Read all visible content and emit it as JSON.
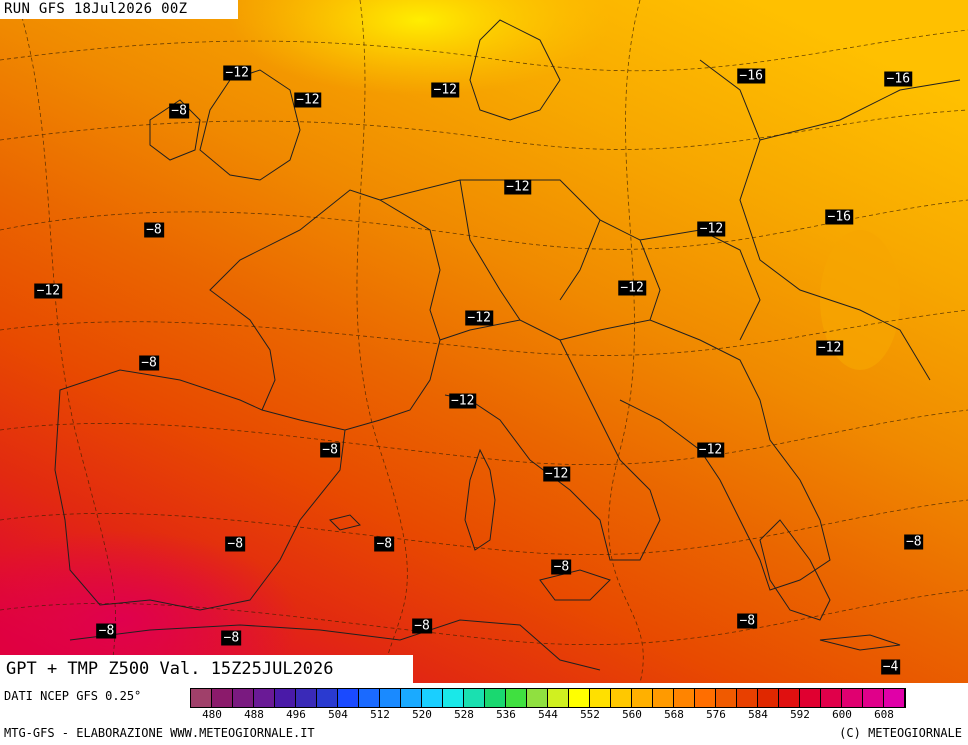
{
  "header": {
    "run_label": "RUN GFS 18Jul2026 00Z"
  },
  "map": {
    "valid_label": "GPT + TMP Z500 Val. 15Z25JUL2026",
    "temperature_labels": [
      {
        "text": "-12",
        "lon": 0.245,
        "lat": 0.107
      },
      {
        "text": "-8",
        "lon": 0.185,
        "lat": 0.163
      },
      {
        "text": "-12",
        "lon": 0.318,
        "lat": 0.146
      },
      {
        "text": "-12",
        "lon": 0.46,
        "lat": 0.132
      },
      {
        "text": "-16",
        "lon": 0.776,
        "lat": 0.112
      },
      {
        "text": "-16",
        "lon": 0.928,
        "lat": 0.116
      },
      {
        "text": "-12",
        "lon": 0.535,
        "lat": 0.274
      },
      {
        "text": "-8",
        "lon": 0.159,
        "lat": 0.337
      },
      {
        "text": "-16",
        "lon": 0.867,
        "lat": 0.317
      },
      {
        "text": "-12",
        "lon": 0.735,
        "lat": 0.336
      },
      {
        "text": "-12",
        "lon": 0.05,
        "lat": 0.426
      },
      {
        "text": "-12",
        "lon": 0.653,
        "lat": 0.421
      },
      {
        "text": "-12",
        "lon": 0.495,
        "lat": 0.465
      },
      {
        "text": "-12",
        "lon": 0.857,
        "lat": 0.509
      },
      {
        "text": "-8",
        "lon": 0.154,
        "lat": 0.531
      },
      {
        "text": "-12",
        "lon": 0.478,
        "lat": 0.587
      },
      {
        "text": "-8",
        "lon": 0.341,
        "lat": 0.659
      },
      {
        "text": "-12",
        "lon": 0.734,
        "lat": 0.659
      },
      {
        "text": "-12",
        "lon": 0.575,
        "lat": 0.694
      },
      {
        "text": "-8",
        "lon": 0.243,
        "lat": 0.796
      },
      {
        "text": "-8",
        "lon": 0.397,
        "lat": 0.797
      },
      {
        "text": "-8",
        "lon": 0.944,
        "lat": 0.793
      },
      {
        "text": "-8",
        "lon": 0.58,
        "lat": 0.83
      },
      {
        "text": "-8",
        "lon": 0.11,
        "lat": 0.924
      },
      {
        "text": "-8",
        "lon": 0.239,
        "lat": 0.934
      },
      {
        "text": "-8",
        "lon": 0.436,
        "lat": 0.916
      },
      {
        "text": "-8",
        "lon": 0.772,
        "lat": 0.909
      },
      {
        "text": "-4",
        "lon": 0.92,
        "lat": 0.977
      }
    ]
  },
  "legend": {
    "source": "DATI NCEP GFS 0.25°",
    "colors": [
      "#a0406a",
      "#8b1a6b",
      "#7a1a80",
      "#6a1a96",
      "#4a1aa8",
      "#3a2ab8",
      "#2a3ad0",
      "#1a4aff",
      "#1a6aff",
      "#1a8aff",
      "#1aaaff",
      "#1acfff",
      "#1ae8e8",
      "#1ae0b0",
      "#1ad870",
      "#40e040",
      "#90e040",
      "#d0f020",
      "#ffff00",
      "#ffe000",
      "#ffc800",
      "#ffb000",
      "#ff9a00",
      "#ff8400",
      "#ff6e00",
      "#f05a00",
      "#e84000",
      "#e02800",
      "#e01010",
      "#e00030",
      "#e0004a",
      "#e00070",
      "#e0008a",
      "#e000a8"
    ],
    "ticks": [
      "480",
      "488",
      "496",
      "504",
      "512",
      "520",
      "528",
      "536",
      "544",
      "552",
      "560",
      "568",
      "576",
      "584",
      "592",
      "600",
      "608"
    ]
  },
  "footer": {
    "credit_left": "MTG-GFS - ELABORAZIONE WWW.METEOGIORNALE.IT",
    "credit_right": "(C) METEOGIORNALE"
  }
}
